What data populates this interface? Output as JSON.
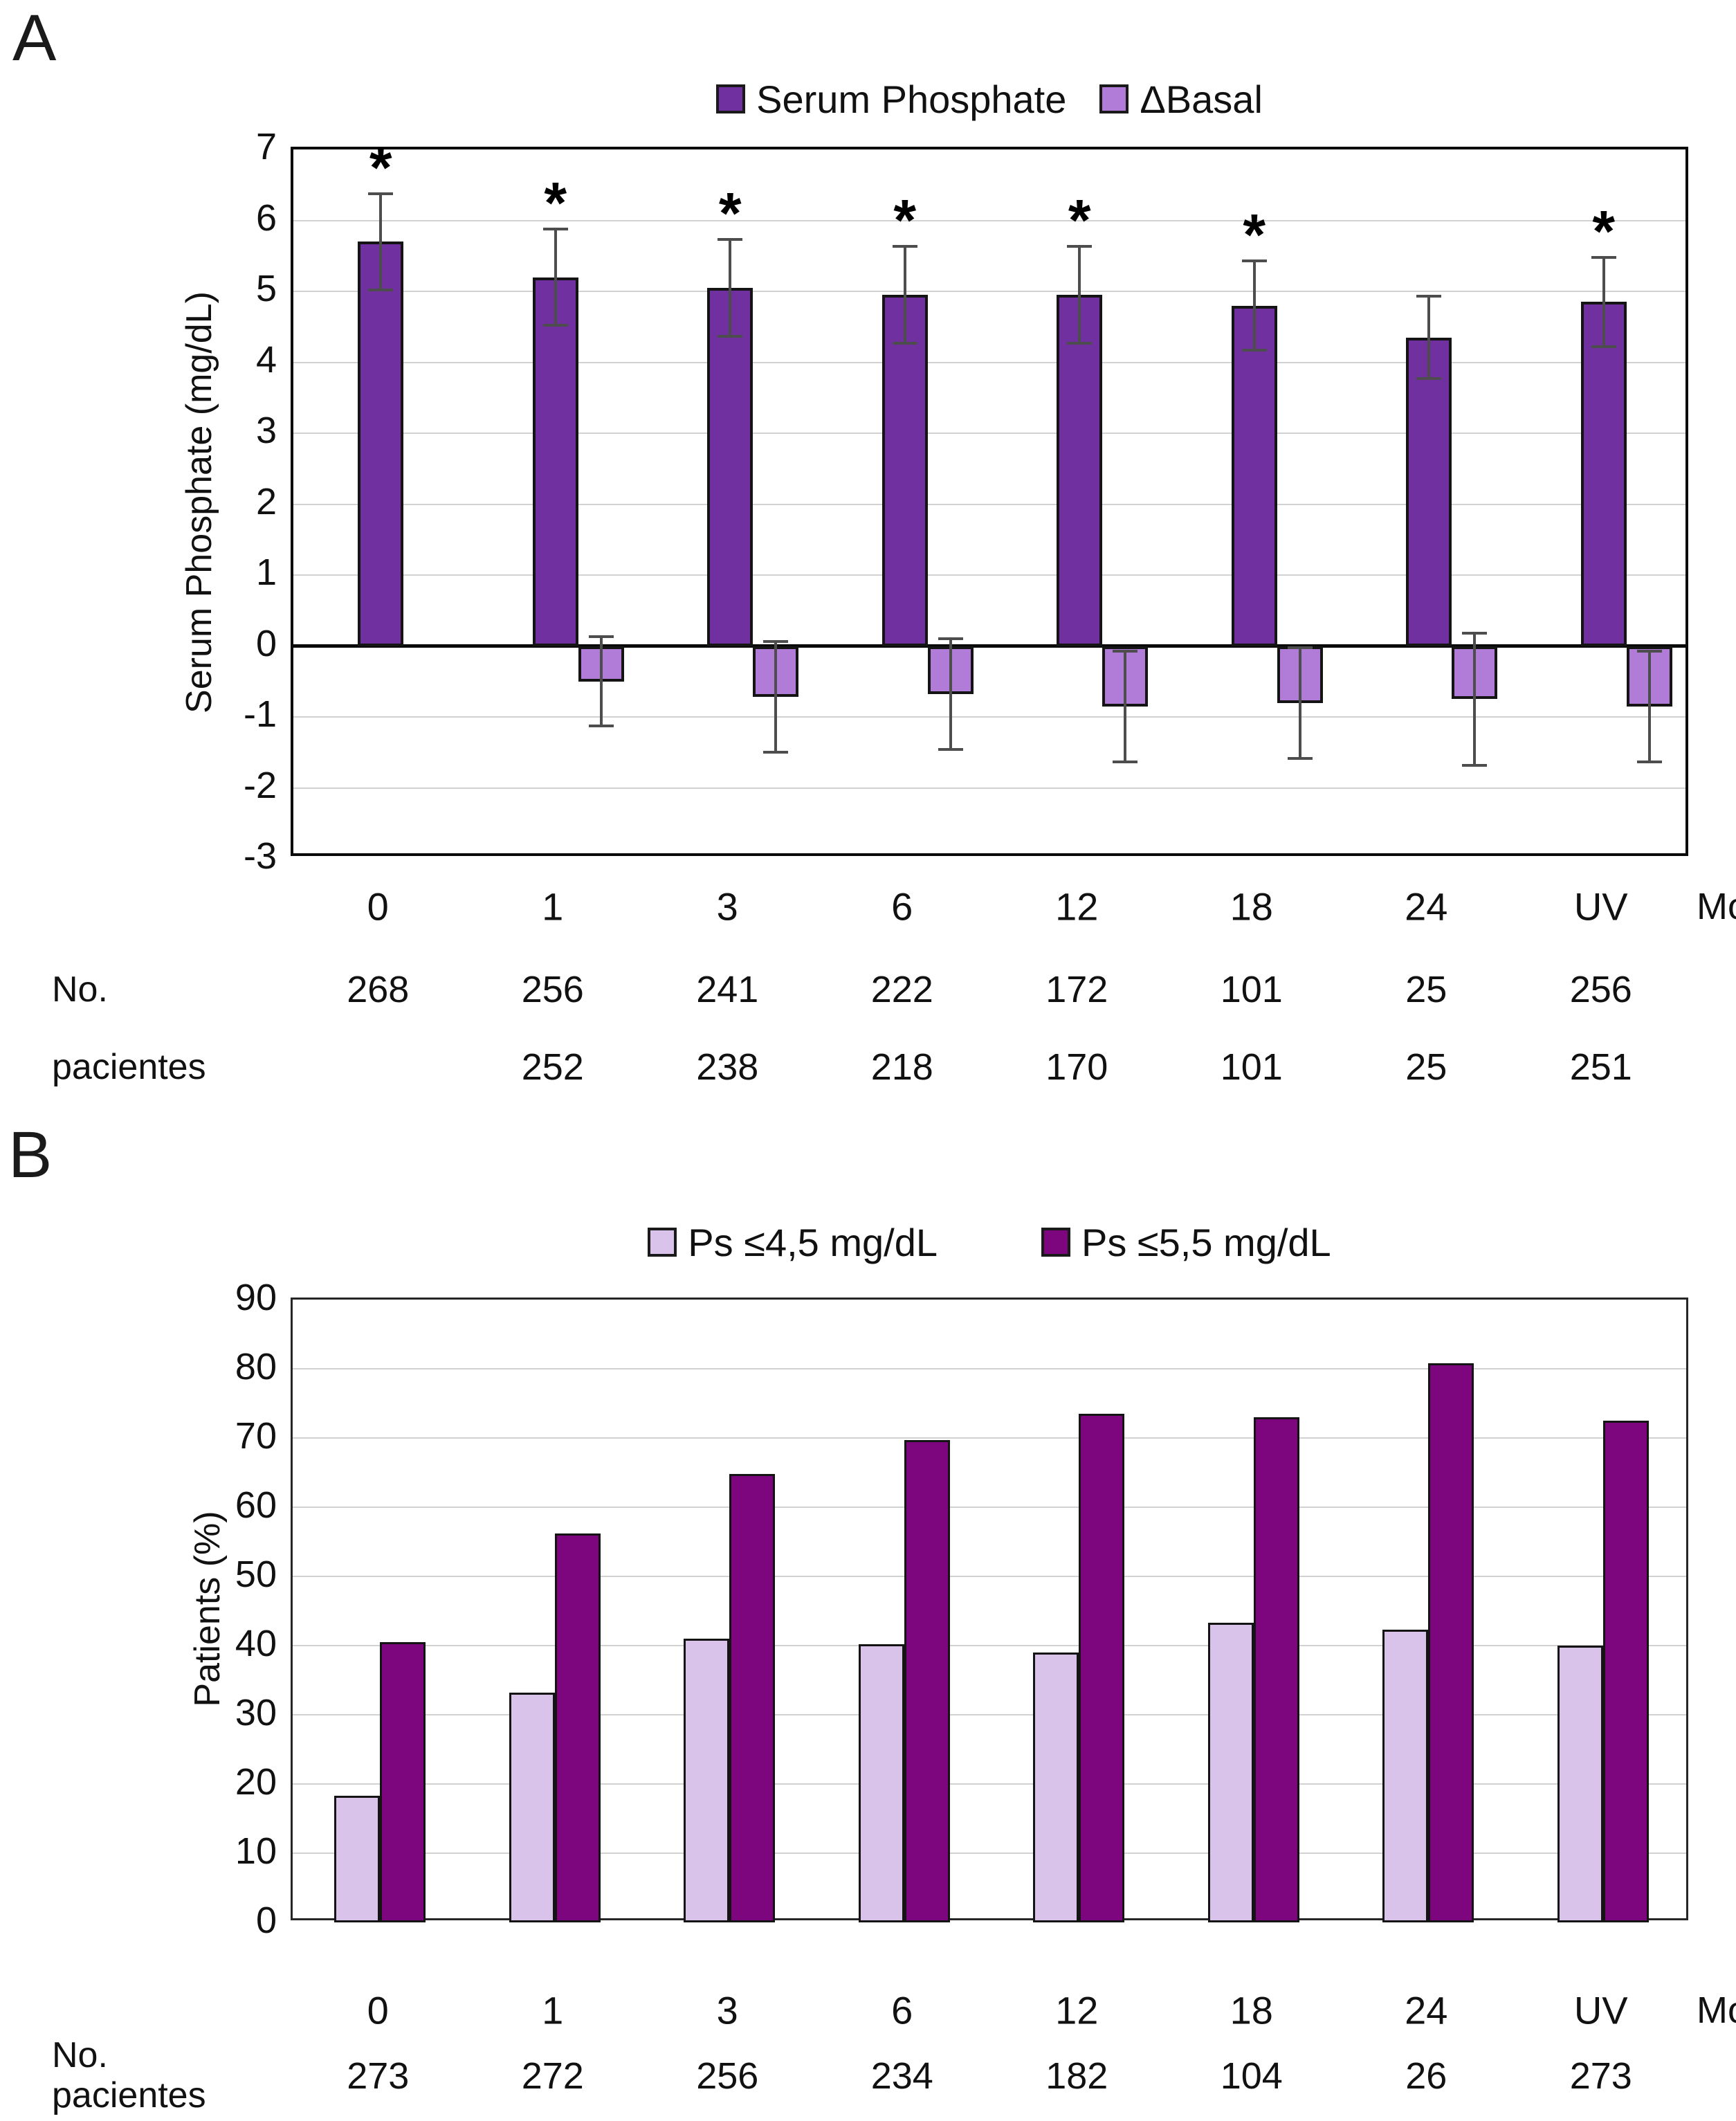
{
  "panel_a": {
    "label": "A",
    "month_label": "Month",
    "patients_label": [
      "No.",
      "pacientes"
    ]
  },
  "panel_b": {
    "label": "B",
    "month_label": "Month",
    "patients_label": [
      "No.",
      "pacientes"
    ]
  },
  "chart_data": [
    {
      "type": "bar",
      "title": "",
      "categories": [
        "0",
        "1",
        "3",
        "6",
        "12",
        "18",
        "24",
        "UV"
      ],
      "xlabel": "Month",
      "ylabel": "Serum Phosphate  (mg/dL)",
      "ylim": [
        -3,
        7
      ],
      "yticks": [
        7,
        6,
        5,
        4,
        3,
        2,
        1,
        0,
        -1,
        -2,
        -3
      ],
      "grid": true,
      "legend_position": "top",
      "series": [
        {
          "name": "Serum Phosphate",
          "color": "#7030A0",
          "values": [
            5.7,
            5.2,
            5.05,
            4.95,
            4.95,
            4.8,
            4.35,
            4.85
          ],
          "errors": [
            0.7,
            0.7,
            0.7,
            0.7,
            0.7,
            0.65,
            0.6,
            0.65
          ],
          "significance": [
            "*",
            "*",
            "*",
            "*",
            "*",
            "*",
            "",
            "*"
          ]
        },
        {
          "name": "ΔBasal",
          "color": "#B07CD8",
          "values": [
            null,
            -0.5,
            -0.72,
            -0.68,
            -0.85,
            -0.8,
            -0.75,
            -0.85
          ],
          "errors": [
            null,
            0.65,
            0.8,
            0.8,
            0.8,
            0.8,
            0.95,
            0.8
          ],
          "significance": null
        }
      ],
      "n_patients": [
        [
          "268",
          "256",
          "241",
          "222",
          "172",
          "101",
          "25",
          "256"
        ],
        [
          "",
          "252",
          "238",
          "218",
          "170",
          "101",
          "25",
          "251"
        ]
      ]
    },
    {
      "type": "bar",
      "title": "",
      "categories": [
        "0",
        "1",
        "3",
        "6",
        "12",
        "18",
        "24",
        "UV"
      ],
      "xlabel": "Month",
      "ylabel": "Patients (%)",
      "ylim": [
        0,
        90
      ],
      "yticks": [
        90,
        80,
        70,
        60,
        50,
        40,
        30,
        20,
        10,
        0
      ],
      "grid": true,
      "legend_position": "top",
      "series": [
        {
          "name": "Ps ≤4,5 mg/dL",
          "color": "#D9C3EA",
          "values": [
            18.3,
            33.2,
            41,
            40.2,
            39,
            43.3,
            42.3,
            40
          ],
          "errors": null,
          "significance": null
        },
        {
          "name": "Ps ≤5,5 mg/dL",
          "color": "#7D057E",
          "values": [
            40.5,
            56.2,
            64.8,
            69.7,
            73.5,
            73,
            80.8,
            72.5
          ],
          "errors": null,
          "significance": null
        }
      ],
      "n_patients": [
        [
          "273",
          "272",
          "256",
          "234",
          "182",
          "104",
          "26",
          "273"
        ]
      ]
    }
  ]
}
